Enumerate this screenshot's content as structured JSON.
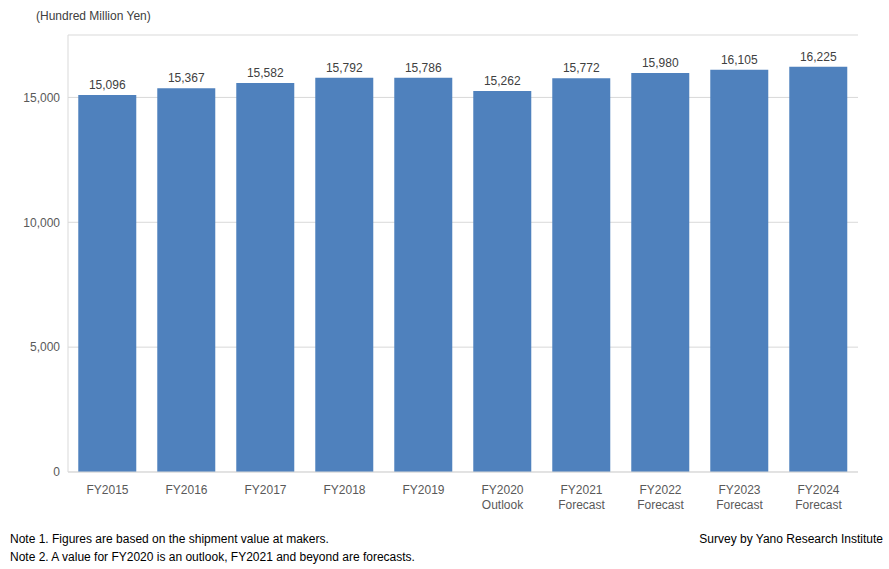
{
  "chart_data": {
    "type": "bar",
    "y_label": "(Hundred Million Yen)",
    "categories": [
      "FY2015",
      "FY2016",
      "FY2017",
      "FY2018",
      "FY2019",
      "FY2020 Outlook",
      "FY2021 Forecast",
      "FY2022 Forecast",
      "FY2023 Forecast",
      "FY2024 Forecast"
    ],
    "values": [
      15096,
      15367,
      15582,
      15792,
      15786,
      15262,
      15772,
      15980,
      16105,
      16225
    ],
    "value_labels": [
      "15,096",
      "15,367",
      "15,582",
      "15,792",
      "15,786",
      "15,262",
      "15,772",
      "15,980",
      "16,105",
      "16,225"
    ],
    "data_labels": true,
    "color": "#4f81bd",
    "ylim": [
      0,
      17500
    ],
    "yticks": [
      0,
      {
        "value": 5000,
        "label": "5,000"
      },
      {
        "value": 10000,
        "label": "10,000"
      },
      {
        "value": 15000,
        "label": "15,000"
      }
    ],
    "grid": true,
    "notes": [
      "Note 1.  Figures are based on the shipment value at makers.",
      "Note 2.  A value for FY2020 is an outlook, FY2021 and beyond are forecasts."
    ],
    "source": "Survey by Yano Research Institute"
  }
}
